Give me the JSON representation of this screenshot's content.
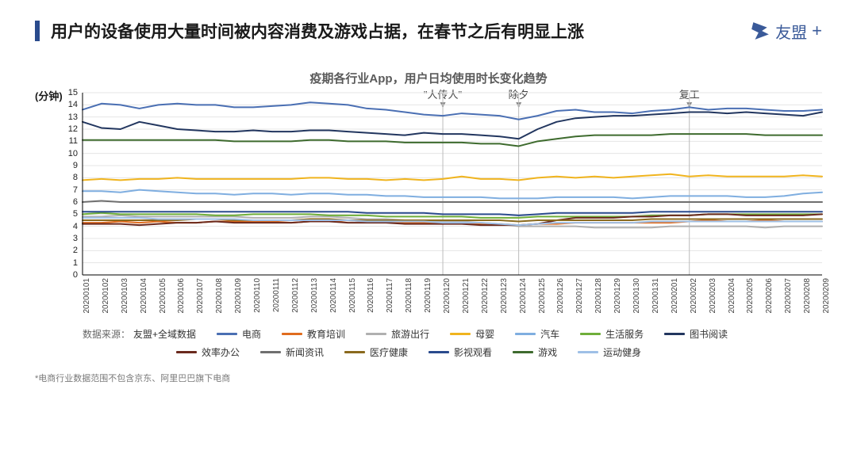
{
  "title": "用户的设备使用大量时间被内容消费及游戏占据，在春节之后有明显上涨",
  "logo_text": "友盟",
  "logo_suffix": "+",
  "chart": {
    "type": "line",
    "subtitle": "疫期各行业App，用户日均使用时长变化趋势",
    "y_axis_label": "(分钟)",
    "ylim": [
      0,
      15
    ],
    "ytick_step": 1,
    "yticks": [
      0,
      1,
      2,
      3,
      4,
      5,
      6,
      7,
      8,
      9,
      10,
      11,
      12,
      13,
      14,
      15
    ],
    "background_color": "#ffffff",
    "grid_color": "#e5e5e5",
    "axis_color": "#000000",
    "line_width": 2,
    "x_labels": [
      "20200101",
      "20200102",
      "20200103",
      "20200104",
      "20200105",
      "20200106",
      "20200107",
      "20200108",
      "20200109",
      "20200110",
      "20200111",
      "20200112",
      "20200113",
      "20200114",
      "20200115",
      "20200116",
      "20200117",
      "20200118",
      "20200119",
      "20200120",
      "20200121",
      "20200122",
      "20200123",
      "20200124",
      "20200125",
      "20200126",
      "20200127",
      "20200128",
      "20200129",
      "20200130",
      "20200131",
      "20200201",
      "20200202",
      "20200203",
      "20200204",
      "20200205",
      "20200206",
      "20200207",
      "20200208",
      "20200209"
    ],
    "annotations": [
      {
        "label": "\"人传人\"",
        "x_index": 19
      },
      {
        "label": "除夕",
        "x_index": 23
      },
      {
        "label": "复工",
        "x_index": 32
      }
    ],
    "series": [
      {
        "name": "电商",
        "color": "#4a6fb3",
        "values": [
          13.6,
          14.1,
          14.0,
          13.7,
          14.0,
          14.1,
          14.0,
          14.0,
          13.8,
          13.8,
          13.9,
          14.0,
          14.2,
          14.1,
          14.0,
          13.7,
          13.6,
          13.4,
          13.2,
          13.1,
          13.3,
          13.2,
          13.1,
          12.8,
          13.1,
          13.5,
          13.6,
          13.4,
          13.4,
          13.3,
          13.5,
          13.6,
          13.8,
          13.6,
          13.7,
          13.7,
          13.6,
          13.5,
          13.5,
          13.6
        ]
      },
      {
        "name": "教育培训",
        "color": "#e06c1e",
        "values": [
          4.3,
          4.3,
          4.4,
          4.3,
          4.4,
          4.3,
          4.3,
          4.4,
          4.4,
          4.4,
          4.4,
          4.3,
          4.4,
          4.4,
          4.5,
          4.4,
          4.4,
          4.3,
          4.3,
          4.2,
          4.3,
          4.2,
          4.2,
          4.1,
          4.2,
          4.2,
          4.3,
          4.3,
          4.3,
          4.3,
          4.3,
          4.3,
          4.4,
          4.5,
          4.4,
          4.4,
          4.5,
          4.4,
          4.4,
          4.4
        ]
      },
      {
        "name": "旅游出行",
        "color": "#b0b0b0",
        "values": [
          4.8,
          4.8,
          4.9,
          4.8,
          4.8,
          4.8,
          4.8,
          4.8,
          4.8,
          4.7,
          4.7,
          4.7,
          4.8,
          4.8,
          4.7,
          4.6,
          4.6,
          4.5,
          4.5,
          4.4,
          4.4,
          4.3,
          4.2,
          4.0,
          4.0,
          4.0,
          4.0,
          3.9,
          3.9,
          3.9,
          3.9,
          4.0,
          4.0,
          4.0,
          4.0,
          4.0,
          3.9,
          4.0,
          4.0,
          4.0
        ]
      },
      {
        "name": "母婴",
        "color": "#f0b41e",
        "values": [
          7.8,
          7.9,
          7.8,
          7.9,
          7.9,
          8.0,
          7.9,
          7.9,
          7.9,
          7.9,
          7.9,
          7.9,
          8.0,
          8.0,
          7.9,
          7.9,
          7.8,
          7.9,
          7.8,
          7.9,
          8.1,
          7.9,
          7.9,
          7.8,
          8.0,
          8.1,
          8.0,
          8.1,
          8.0,
          8.1,
          8.2,
          8.3,
          8.1,
          8.2,
          8.1,
          8.1,
          8.1,
          8.1,
          8.2,
          8.1
        ]
      },
      {
        "name": "汽车",
        "color": "#7faee0",
        "values": [
          6.9,
          6.9,
          6.8,
          7.0,
          6.9,
          6.8,
          6.7,
          6.7,
          6.6,
          6.7,
          6.7,
          6.6,
          6.7,
          6.7,
          6.6,
          6.6,
          6.5,
          6.5,
          6.4,
          6.4,
          6.4,
          6.4,
          6.3,
          6.3,
          6.3,
          6.4,
          6.4,
          6.4,
          6.4,
          6.3,
          6.4,
          6.5,
          6.5,
          6.5,
          6.5,
          6.4,
          6.4,
          6.5,
          6.7,
          6.8
        ]
      },
      {
        "name": "生活服务",
        "color": "#6fae3a",
        "values": [
          5.0,
          5.1,
          5.0,
          5.0,
          5.0,
          5.0,
          5.0,
          4.9,
          4.9,
          5.0,
          5.0,
          5.0,
          5.0,
          4.9,
          4.9,
          4.9,
          4.8,
          4.8,
          4.8,
          4.8,
          4.8,
          4.7,
          4.7,
          4.7,
          4.8,
          4.8,
          4.8,
          4.8,
          4.8,
          4.8,
          4.9,
          4.9,
          4.9,
          5.0,
          5.0,
          5.0,
          5.0,
          5.0,
          5.0,
          5.0
        ]
      },
      {
        "name": "图书阅读",
        "color": "#22365f",
        "values": [
          12.6,
          12.1,
          12.0,
          12.6,
          12.3,
          12.0,
          11.9,
          11.8,
          11.8,
          11.9,
          11.8,
          11.8,
          11.9,
          11.9,
          11.8,
          11.7,
          11.6,
          11.5,
          11.7,
          11.6,
          11.6,
          11.5,
          11.4,
          11.2,
          12.0,
          12.6,
          12.9,
          13.0,
          13.1,
          13.1,
          13.2,
          13.3,
          13.4,
          13.4,
          13.3,
          13.4,
          13.3,
          13.2,
          13.1,
          13.4
        ]
      },
      {
        "name": "效率办公",
        "color": "#6b2a1e",
        "values": [
          4.2,
          4.2,
          4.2,
          4.1,
          4.2,
          4.3,
          4.3,
          4.4,
          4.3,
          4.3,
          4.3,
          4.3,
          4.4,
          4.4,
          4.3,
          4.3,
          4.3,
          4.2,
          4.2,
          4.2,
          4.2,
          4.1,
          4.1,
          4.1,
          4.2,
          4.5,
          4.7,
          4.7,
          4.7,
          4.8,
          4.8,
          4.9,
          4.9,
          5.0,
          5.0,
          4.9,
          4.9,
          4.9,
          4.9,
          5.0
        ]
      },
      {
        "name": "新闻资讯",
        "color": "#6f6f6f",
        "values": [
          6.0,
          6.1,
          6.0,
          6.0,
          6.0,
          6.0,
          6.0,
          6.0,
          6.0,
          6.0,
          6.0,
          6.0,
          6.0,
          6.0,
          6.0,
          6.0,
          6.0,
          6.0,
          6.0,
          6.0,
          6.0,
          6.0,
          6.0,
          6.0,
          6.0,
          6.0,
          6.0,
          6.0,
          6.0,
          6.0,
          6.0,
          6.0,
          6.0,
          6.0,
          6.0,
          6.0,
          6.0,
          6.0,
          6.0,
          6.0
        ]
      },
      {
        "name": "医疗健康",
        "color": "#8a6a1e",
        "values": [
          4.5,
          4.5,
          4.5,
          4.5,
          4.5,
          4.5,
          4.6,
          4.6,
          4.5,
          4.5,
          4.5,
          4.5,
          4.6,
          4.6,
          4.5,
          4.5,
          4.5,
          4.5,
          4.5,
          4.5,
          4.5,
          4.5,
          4.5,
          4.4,
          4.5,
          4.5,
          4.5,
          4.5,
          4.5,
          4.5,
          4.6,
          4.6,
          4.6,
          4.6,
          4.6,
          4.6,
          4.6,
          4.6,
          4.6,
          4.6
        ]
      },
      {
        "name": "影视观看",
        "color": "#2a4b8d",
        "values": [
          5.2,
          5.2,
          5.2,
          5.2,
          5.2,
          5.2,
          5.2,
          5.2,
          5.2,
          5.2,
          5.2,
          5.2,
          5.2,
          5.2,
          5.2,
          5.1,
          5.1,
          5.1,
          5.1,
          5.0,
          5.0,
          5.0,
          5.0,
          4.9,
          5.0,
          5.1,
          5.1,
          5.1,
          5.1,
          5.1,
          5.2,
          5.2,
          5.2,
          5.2,
          5.2,
          5.2,
          5.2,
          5.2,
          5.2,
          5.2
        ]
      },
      {
        "name": "游戏",
        "color": "#3e6b2e",
        "values": [
          11.1,
          11.1,
          11.1,
          11.1,
          11.1,
          11.1,
          11.1,
          11.1,
          11.0,
          11.0,
          11.0,
          11.0,
          11.1,
          11.1,
          11.0,
          11.0,
          11.0,
          10.9,
          10.9,
          10.9,
          10.9,
          10.8,
          10.8,
          10.6,
          11.0,
          11.2,
          11.4,
          11.5,
          11.5,
          11.5,
          11.5,
          11.6,
          11.6,
          11.6,
          11.6,
          11.6,
          11.5,
          11.5,
          11.5,
          11.5
        ]
      },
      {
        "name": "运动健身",
        "color": "#9fc0e6",
        "values": [
          4.7,
          4.7,
          4.7,
          4.7,
          4.6,
          4.6,
          4.6,
          4.6,
          4.6,
          4.5,
          4.5,
          4.5,
          4.5,
          4.5,
          4.5,
          4.4,
          4.4,
          4.4,
          4.4,
          4.3,
          4.3,
          4.3,
          4.2,
          4.1,
          4.2,
          4.3,
          4.3,
          4.3,
          4.3,
          4.3,
          4.4,
          4.4,
          4.4,
          4.4,
          4.4,
          4.4,
          4.4,
          4.4,
          4.4,
          4.4
        ]
      }
    ],
    "data_source_label": "数据来源：",
    "data_source_value": "友盟+全域数据",
    "legend_row1_ids": [
      0,
      1,
      2,
      3,
      4,
      5,
      6
    ],
    "legend_row2_ids": [
      7,
      8,
      9,
      10,
      11,
      12
    ]
  },
  "footnote": "*电商行业数据范围不包含京东、阿里巴巴旗下电商"
}
